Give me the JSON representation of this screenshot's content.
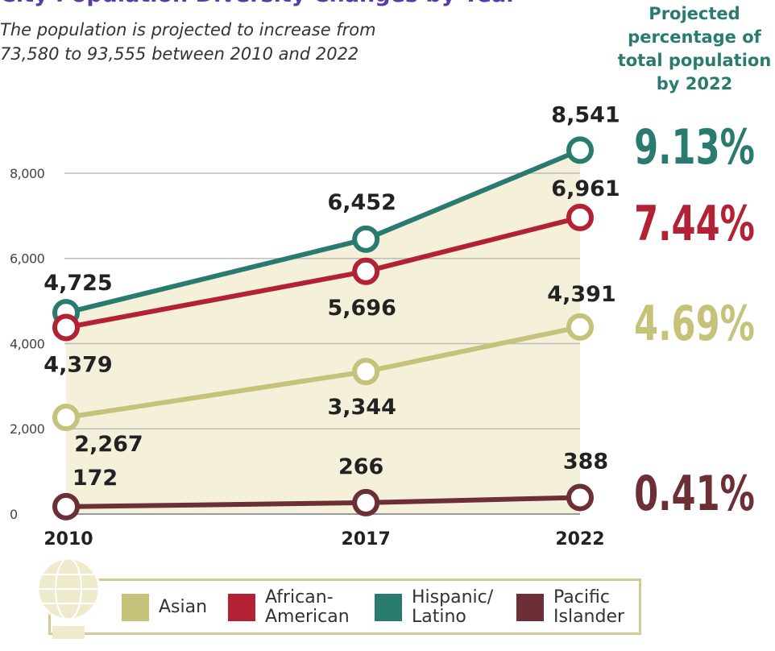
{
  "chart_data": {
    "type": "line",
    "title": "City Population Diversity Changes by Year",
    "subtitle_lines": [
      "The population is projected to increase from",
      "73,580 to 93,555 between 2010 and 2022"
    ],
    "projection_heading_lines": [
      "Projected",
      "percentage of",
      "total population",
      "by 2022"
    ],
    "x": [
      2010,
      2017,
      2022
    ],
    "xlim": [
      2010,
      2022
    ],
    "xticks": [
      2010,
      2017,
      2022
    ],
    "ylim": [
      0,
      9000
    ],
    "yticks": [
      0,
      {
        "value": 2000,
        "label": "2,000"
      },
      {
        "value": 4000,
        "label": "4,000"
      },
      {
        "value": 6000,
        "label": "6,000"
      },
      {
        "value": 8000,
        "label": "8,000"
      }
    ],
    "grid": true,
    "area_under_series": 0,
    "area_color": "#f4f0da",
    "series": [
      {
        "name": "Hispanic/\nLatino",
        "color": "#2a7b6f",
        "values": [
          4725,
          6452,
          8541
        ],
        "value_labels": [
          "4,725",
          "6,452",
          "8,541"
        ],
        "projected_share": 9.13,
        "projected_share_label": "9.13%"
      },
      {
        "name": "African-\nAmerican",
        "color": "#b22234",
        "values": [
          4379,
          5696,
          6961
        ],
        "value_labels": [
          "4,379",
          "5,696",
          "6,961"
        ],
        "projected_share": 7.44,
        "projected_share_label": "7.44%"
      },
      {
        "name": "Asian",
        "color": "#c5c27a",
        "values": [
          2267,
          3344,
          4391
        ],
        "value_labels": [
          "2,267",
          "3,344",
          "4,391"
        ],
        "projected_share": 4.69,
        "projected_share_label": "4.69%"
      },
      {
        "name": "Pacific\nIslander",
        "color": "#6b2f35",
        "values": [
          172,
          266,
          388
        ],
        "value_labels": [
          "172",
          "266",
          "388"
        ],
        "projected_share": 0.41,
        "projected_share_label": "0.41%"
      }
    ]
  }
}
